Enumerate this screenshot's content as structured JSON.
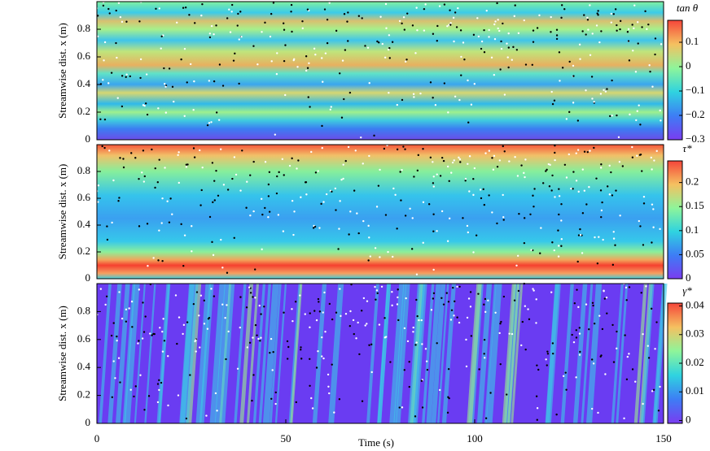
{
  "chart_data": [
    {
      "type": "heatmap",
      "ylabel": "Streamwise dist. x (m)",
      "xlim": [
        0,
        150
      ],
      "ylim": [
        0,
        1
      ],
      "yticks": [
        0,
        0.2,
        0.4,
        0.6,
        0.8
      ],
      "colorbar": {
        "label": "tan θ",
        "lim": [
          -0.3,
          0.19
        ],
        "ticks": [
          {
            "value": -0.3,
            "label": "−0.3"
          },
          {
            "value": -0.2,
            "label": "−0.2"
          },
          {
            "value": -0.1,
            "label": "−0.1"
          },
          0,
          0.1
        ]
      }
    },
    {
      "type": "heatmap",
      "ylabel": "Streamwise dist. x (m)",
      "xlim": [
        0,
        150
      ],
      "ylim": [
        0,
        1
      ],
      "yticks": [
        0,
        0.2,
        0.4,
        0.6,
        0.8
      ],
      "colorbar": {
        "label": "τ*",
        "lim": [
          0,
          0.245
        ],
        "ticks": [
          0,
          0.05,
          0.1,
          0.15,
          0.2
        ]
      }
    },
    {
      "type": "heatmap",
      "ylabel": "Streamwise dist. x (m)",
      "xlabel": "Time (s)",
      "xlim": [
        0,
        150
      ],
      "xticks": [
        0,
        50,
        100,
        150
      ],
      "ylim": [
        0,
        1
      ],
      "yticks": [
        0,
        0.2,
        0.4,
        0.6,
        0.8
      ],
      "colorbar": {
        "label": "γ*",
        "lim": [
          -0.001,
          0.041
        ],
        "ticks": [
          0,
          0.01,
          0.02,
          0.03,
          0.04
        ]
      }
    }
  ]
}
